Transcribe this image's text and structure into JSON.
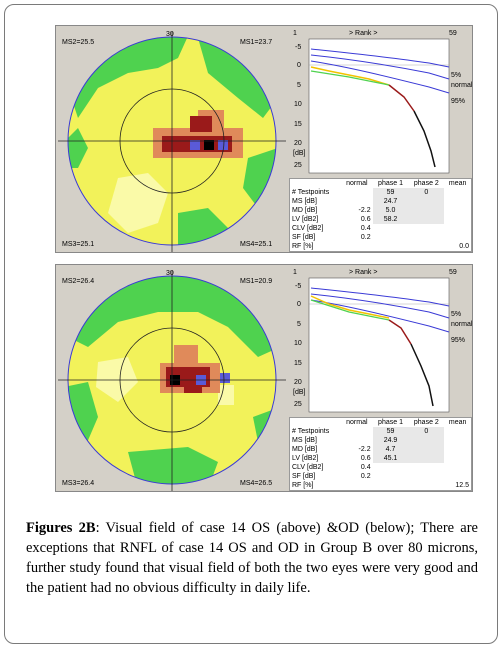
{
  "panels": [
    {
      "id": "os",
      "field": {
        "scale_label": "30",
        "ms1": "MS1=23.7",
        "ms2": "MS2=25.5",
        "ms3": "MS3=25.1",
        "ms4": "MS4=25.1"
      },
      "rank": {
        "title": "> Rank >",
        "x_start": "1",
        "x_end": "59",
        "y_ticks": [
          "-5",
          "0",
          "5",
          "10",
          "15",
          "20",
          "25"
        ],
        "y_unit": "[dB]",
        "curve_labels": [
          "5%",
          "normal",
          "95%"
        ]
      },
      "stats": {
        "headers": [
          "normal",
          "phase 1",
          "phase 2",
          "mean"
        ],
        "rows": [
          {
            "label": "# Testpoints",
            "normal": "",
            "phase1": "59",
            "phase2": "0",
            "mean": ""
          },
          {
            "label": "MS [dB]",
            "normal": "",
            "phase1": "24.7",
            "phase2": "",
            "mean": ""
          },
          {
            "label": "MD [dB]",
            "normal": "-2.2",
            "phase1": "5.0",
            "phase2": "",
            "mean": ""
          },
          {
            "label": "LV [dB2]",
            "normal": "0.6",
            "phase1": "58.2",
            "phase2": "",
            "mean": ""
          },
          {
            "label": "CLV [dB2]",
            "normal": "0.4",
            "phase1": "",
            "phase2": "",
            "mean": ""
          },
          {
            "label": "SF [dB]",
            "normal": "0.2",
            "phase1": "",
            "phase2": "",
            "mean": ""
          },
          {
            "label": "RF [%]",
            "normal": "",
            "phase1": "",
            "phase2": "",
            "mean": "0.0"
          }
        ]
      }
    },
    {
      "id": "od",
      "field": {
        "scale_label": "30",
        "ms1": "MS1=20.9",
        "ms2": "MS2=26.4",
        "ms3": "MS3=26.4",
        "ms4": "MS4=26.5"
      },
      "rank": {
        "title": "> Rank >",
        "x_start": "1",
        "x_end": "59",
        "y_ticks": [
          "-5",
          "0",
          "5",
          "10",
          "15",
          "20",
          "25"
        ],
        "y_unit": "[dB]",
        "curve_labels": [
          "5%",
          "normal",
          "95%"
        ]
      },
      "stats": {
        "headers": [
          "normal",
          "phase 1",
          "phase 2",
          "mean"
        ],
        "rows": [
          {
            "label": "# Testpoints",
            "normal": "",
            "phase1": "59",
            "phase2": "0",
            "mean": ""
          },
          {
            "label": "MS [dB]",
            "normal": "",
            "phase1": "24.9",
            "phase2": "",
            "mean": ""
          },
          {
            "label": "MD [dB]",
            "normal": "-2.2",
            "phase1": "4.7",
            "phase2": "",
            "mean": ""
          },
          {
            "label": "LV [dB2]",
            "normal": "0.6",
            "phase1": "45.1",
            "phase2": "",
            "mean": ""
          },
          {
            "label": "CLV [dB2]",
            "normal": "0.4",
            "phase1": "",
            "phase2": "",
            "mean": ""
          },
          {
            "label": "SF [dB]",
            "normal": "0.2",
            "phase1": "",
            "phase2": "",
            "mean": ""
          },
          {
            "label": "RF [%]",
            "normal": "",
            "phase1": "",
            "phase2": "",
            "mean": "12.5"
          }
        ]
      }
    }
  ],
  "caption": {
    "label": "Figures 2B",
    "text": ": Visual field of case 14 OS (above) &OD (below); There are exceptions that RNFL of case 14 OS and OD in Group B over 80 microns, further study found that visual field of both the two eyes were very good and the patient had no obvious difficulty in daily life."
  },
  "colors": {
    "green": "#4fd24f",
    "yellow": "#f2f25a",
    "light_yellow": "#fafaa8",
    "orange": "#e08a5a",
    "dark_red": "#9a1a1a",
    "purple": "#5a5ad8",
    "panel_bg": "#d4d0c8",
    "curve_blue": "#3a3ad6"
  }
}
